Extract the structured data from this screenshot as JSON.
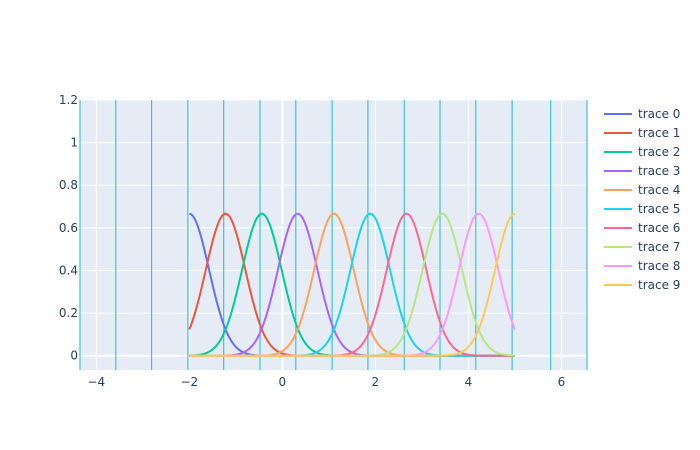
{
  "chart_data": {
    "type": "line",
    "title": "",
    "xlabel": "",
    "ylabel": "",
    "xlim": [
      -4.35,
      6.55
    ],
    "ylim": [
      -0.067,
      1.2
    ],
    "xticks": [
      -4,
      -2,
      0,
      2,
      4,
      6
    ],
    "xtick_labels": [
      "−4",
      "−2",
      "0",
      "2",
      "4",
      "6"
    ],
    "yticks": [
      0,
      0.2,
      0.4,
      0.6,
      0.8,
      1,
      1.2
    ],
    "ytick_labels": [
      "0",
      "0.2",
      "0.4",
      "0.6",
      "0.8",
      "1",
      "1.2"
    ],
    "grid": true,
    "legend_position": "right",
    "background_color": "#e5ecf6",
    "vertical_lines": {
      "color": "#17becf",
      "x": [
        -4.35,
        -3.58,
        -2.81,
        -2.03,
        -1.26,
        -0.48,
        0.29,
        1.07,
        1.84,
        2.62,
        3.39,
        4.16,
        4.94,
        5.77,
        6.55
      ]
    },
    "curve_function": "y = (2/3) * exp(-((x - center) / width)^2)",
    "x_domain": [
      -2,
      5
    ],
    "series": [
      {
        "name": "trace 0",
        "color": "#636efa",
        "center": -2.0,
        "width": 0.6
      },
      {
        "name": "trace 1",
        "color": "#ef553b",
        "center": -1.22,
        "width": 0.6
      },
      {
        "name": "trace 2",
        "color": "#00cc96",
        "center": -0.44,
        "width": 0.6
      },
      {
        "name": "trace 3",
        "color": "#ab63fa",
        "center": 0.33,
        "width": 0.6
      },
      {
        "name": "trace 4",
        "color": "#ffa15a",
        "center": 1.11,
        "width": 0.6
      },
      {
        "name": "trace 5",
        "color": "#19d3f3",
        "center": 1.89,
        "width": 0.6
      },
      {
        "name": "trace 6",
        "color": "#ff6692",
        "center": 2.67,
        "width": 0.6
      },
      {
        "name": "trace 7",
        "color": "#b6e880",
        "center": 3.44,
        "width": 0.6
      },
      {
        "name": "trace 8",
        "color": "#ff97ff",
        "center": 4.22,
        "width": 0.6
      },
      {
        "name": "trace 9",
        "color": "#fecb52",
        "center": 5.0,
        "width": 0.6
      }
    ]
  }
}
